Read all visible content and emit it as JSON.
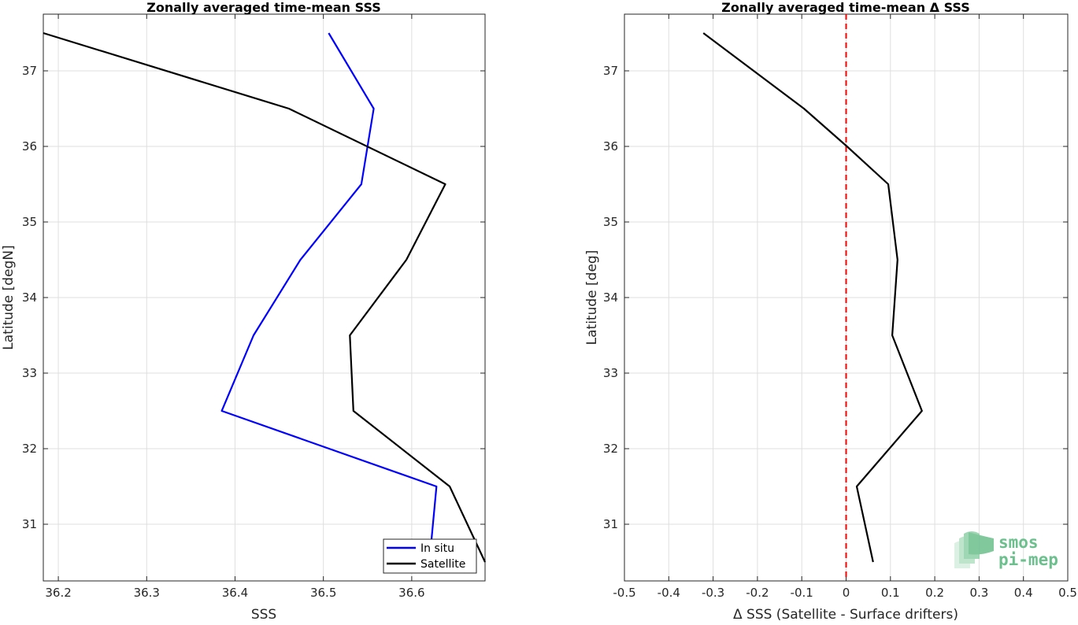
{
  "chart_data": [
    {
      "type": "line",
      "title": "Zonally averaged time-mean SSS",
      "xlabel": "SSS",
      "ylabel": "Latitude [degN]",
      "xlim": [
        36.183,
        36.683
      ],
      "ylim": [
        30.25,
        37.75
      ],
      "xticks": [
        36.2,
        36.3,
        36.4,
        36.5,
        36.6
      ],
      "xtick_labels": [
        "36.2",
        "36.3",
        "36.4",
        "36.5",
        "36.6"
      ],
      "yticks": [
        31,
        32,
        33,
        34,
        35,
        36,
        37
      ],
      "ytick_labels": [
        "31",
        "32",
        "33",
        "34",
        "35",
        "36",
        "37"
      ],
      "grid": true,
      "legend": "bottom-right",
      "series": [
        {
          "name": "In situ",
          "color": "#0000ff",
          "points": [
            [
              36.506,
              37.5
            ],
            [
              36.557,
              36.5
            ],
            [
              36.543,
              35.5
            ],
            [
              36.474,
              34.5
            ],
            [
              36.421,
              33.5
            ],
            [
              36.385,
              32.5
            ],
            [
              36.628,
              31.5
            ],
            [
              36.62,
              30.5
            ]
          ]
        },
        {
          "name": "Satellite",
          "color": "#000000",
          "points": [
            [
              36.183,
              37.5
            ],
            [
              36.461,
              36.5
            ],
            [
              36.638,
              35.5
            ],
            [
              36.594,
              34.5
            ],
            [
              36.53,
              33.5
            ],
            [
              36.534,
              32.5
            ],
            [
              36.643,
              31.5
            ],
            [
              36.683,
              30.5
            ]
          ]
        }
      ]
    },
    {
      "type": "line",
      "title": "Zonally averaged time-mean Δ SSS",
      "xlabel": "Δ SSS (Satellite - Surface drifters)",
      "ylabel": "Latitude [deg]",
      "xlim": [
        -0.5,
        0.5
      ],
      "ylim": [
        30.25,
        37.75
      ],
      "xticks": [
        -0.5,
        -0.4,
        -0.3,
        -0.2,
        -0.1,
        0,
        0.1,
        0.2,
        0.3,
        0.4,
        0.5
      ],
      "xtick_labels": [
        "-0.5",
        "-0.4",
        "-0.3",
        "-0.2",
        "-0.1",
        "0",
        "0.1",
        "0.2",
        "0.3",
        "0.4",
        "0.5"
      ],
      "yticks": [
        31,
        32,
        33,
        34,
        35,
        36,
        37
      ],
      "ytick_labels": [
        "31",
        "32",
        "33",
        "34",
        "35",
        "36",
        "37"
      ],
      "grid": true,
      "reference_line": {
        "x": 0,
        "color": "#ff0000",
        "style": "dashed"
      },
      "series": [
        {
          "color": "#000000",
          "points": [
            [
              -0.322,
              37.5
            ],
            [
              -0.095,
              36.5
            ],
            [
              0.002,
              36.0
            ],
            [
              0.095,
              35.5
            ],
            [
              0.116,
              34.5
            ],
            [
              0.104,
              33.5
            ],
            [
              0.171,
              32.5
            ],
            [
              0.024,
              31.5
            ],
            [
              0.061,
              30.5
            ]
          ]
        }
      ]
    }
  ],
  "logo": {
    "line1": "smos",
    "line2": "pi-mep",
    "color": "#4caf78"
  }
}
